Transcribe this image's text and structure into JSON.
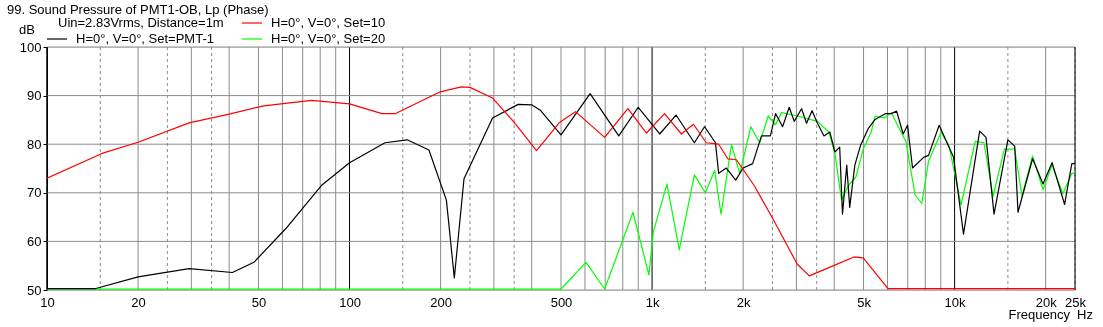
{
  "chart_data": {
    "type": "line",
    "title": "99. Sound Pressure of PMT1-OB, Lp (Phase)",
    "subtitle": "Uin=2.83Vrms, Distance=1m",
    "xlabel": "Frequency",
    "ylabel": "dB",
    "annotations": [
      "Hz"
    ],
    "log": "x",
    "grid": true,
    "legend": "top left",
    "line_style": "solid",
    "marker": "none",
    "xlim": [
      10,
      25000
    ],
    "ylim": [
      50,
      100
    ],
    "xticks": [
      10,
      {
        "value": 15,
        "label": null
      },
      20,
      {
        "value": 25,
        "label": null
      },
      {
        "value": 30,
        "label": null
      },
      {
        "value": 35,
        "label": null
      },
      {
        "value": 40,
        "label": null
      },
      50,
      {
        "value": 60,
        "label": null
      },
      {
        "value": 70,
        "label": null
      },
      {
        "value": 80,
        "label": null
      },
      {
        "value": 90,
        "label": null
      },
      100,
      {
        "value": 150,
        "label": null
      },
      200,
      {
        "value": 250,
        "label": null
      },
      {
        "value": 300,
        "label": null
      },
      {
        "value": 350,
        "label": null
      },
      {
        "value": 400,
        "label": null
      },
      500,
      {
        "value": 600,
        "label": null
      },
      {
        "value": 700,
        "label": null
      },
      {
        "value": 800,
        "label": null
      },
      {
        "value": 900,
        "label": null
      },
      {
        "value": 1000,
        "label": "1k"
      },
      {
        "value": 1500,
        "label": null
      },
      {
        "value": 2000,
        "label": "2k"
      },
      {
        "value": 2500,
        "label": null
      },
      {
        "value": 3000,
        "label": null
      },
      {
        "value": 3500,
        "label": null
      },
      {
        "value": 4000,
        "label": null
      },
      {
        "value": 5000,
        "label": "5k"
      },
      {
        "value": 6000,
        "label": null
      },
      {
        "value": 7000,
        "label": null
      },
      {
        "value": 8000,
        "label": null
      },
      {
        "value": 9000,
        "label": null
      },
      {
        "value": 10000,
        "label": "10k"
      },
      {
        "value": 15000,
        "label": null
      },
      {
        "value": 20000,
        "label": "20k"
      },
      {
        "value": 25000,
        "label": "25k"
      }
    ],
    "yticks": [
      50,
      60,
      70,
      80,
      90,
      100
    ],
    "series": [
      {
        "name": "H=0°, V=0°, Set=10",
        "color": "#ff0000",
        "x": [
          10,
          15.2,
          20,
          29.5,
          40,
          52,
          75,
          100,
          128,
          142,
          198,
          234,
          250,
          297,
          348,
          415,
          427,
          493,
          558,
          697,
          832,
          958,
          1100,
          1250,
          1370,
          1510,
          1660,
          1780,
          1900,
          2180,
          2500,
          3020,
          3310,
          3840,
          4650,
          4990,
          6020,
          25000
        ],
        "values": [
          73,
          78.1,
          80.4,
          84.4,
          86.2,
          87.9,
          89,
          88.3,
          86.3,
          86.3,
          90.7,
          91.8,
          91.7,
          89.5,
          84.7,
          78.7,
          79.6,
          84.4,
          86.7,
          81.4,
          87.3,
          82.3,
          86.3,
          82.1,
          84.1,
          80.3,
          80,
          77,
          76.8,
          71.4,
          64.8,
          55.3,
          52.9,
          54.6,
          56.8,
          56.6,
          50.3,
          50.3
        ]
      },
      {
        "name": "H=0°, V=0°, Set=PMT-1",
        "color": "#000000",
        "x": [
          10,
          14.5,
          20,
          29.5,
          41,
          48.3,
          61.5,
          80.7,
          100,
          131,
          155,
          183,
          209,
          222,
          239,
          297,
          361,
          400,
          427,
          500,
          624,
          776,
          900,
          1060,
          1200,
          1380,
          1490,
          1620,
          1660,
          1760,
          1890,
          2000,
          2150,
          2300,
          2460,
          2560,
          2700,
          2840,
          2950,
          3120,
          3240,
          3380,
          3520,
          3700,
          3870,
          4020,
          4170,
          4260,
          4400,
          4500,
          4680,
          4890,
          5180,
          5460,
          5920,
          6180,
          6430,
          6760,
          6990,
          7260,
          7900,
          8200,
          8890,
          9920,
          10700,
          12100,
          12700,
          13500,
          15000,
          15800,
          16200,
          18100,
          19600,
          21000,
          23100,
          24400,
          25000
        ],
        "values": [
          50.3,
          50.3,
          52.7,
          54.4,
          53.6,
          55.7,
          62.6,
          71.5,
          76.2,
          80.3,
          80.9,
          78.8,
          68.5,
          52.5,
          72.9,
          85.4,
          88.2,
          88.1,
          87,
          81.9,
          90.4,
          81.7,
          87.6,
          82.1,
          86,
          80.3,
          83.6,
          80.3,
          74,
          75.1,
          72.6,
          75.1,
          76,
          81.7,
          81.7,
          86.3,
          83.6,
          87.6,
          84.7,
          87.3,
          84.3,
          86.9,
          84.3,
          81.7,
          82.5,
          78.4,
          79.4,
          65.6,
          75.7,
          67,
          75.7,
          79.8,
          83.2,
          85.1,
          86.3,
          86.3,
          86.8,
          82.1,
          83.9,
          75.1,
          77.3,
          77.7,
          83.9,
          77.3,
          61.5,
          82.7,
          81.4,
          65.6,
          80.9,
          79.6,
          66,
          77,
          71.8,
          76.2,
          67.6,
          76,
          76
        ]
      },
      {
        "name": "H=0°, V=0°, Set=20",
        "color": "#00ff00",
        "x": [
          10,
          500,
          605,
          697,
          865,
          976,
          1010,
          1120,
          1230,
          1380,
          1500,
          1610,
          1690,
          1830,
          1950,
          2120,
          2270,
          2420,
          2560,
          2680,
          3020,
          3520,
          3840,
          4020,
          4230,
          4460,
          4720,
          4990,
          5300,
          5460,
          5850,
          6180,
          6430,
          6900,
          7400,
          7790,
          8200,
          9030,
          9600,
          10500,
          11700,
          12500,
          13400,
          14600,
          15800,
          16700,
          18100,
          19600,
          21000,
          22800,
          24400,
          25000
        ],
        "values": [
          50.2,
          50.2,
          55.7,
          50.2,
          66,
          53.1,
          62,
          71.8,
          58.3,
          73.7,
          70,
          74.6,
          65.6,
          79.9,
          73.9,
          83.6,
          80.3,
          85.8,
          84,
          86.5,
          85.8,
          84.7,
          82.5,
          78.1,
          68.5,
          71.5,
          73.3,
          79,
          82.5,
          85.8,
          85.4,
          86.5,
          84.3,
          80.6,
          69.6,
          67.8,
          76.5,
          82.5,
          79.5,
          67.5,
          80.6,
          80.3,
          69.3,
          79,
          79,
          69.3,
          77.6,
          70.6,
          75.7,
          69.8,
          74,
          74
        ]
      }
    ]
  }
}
